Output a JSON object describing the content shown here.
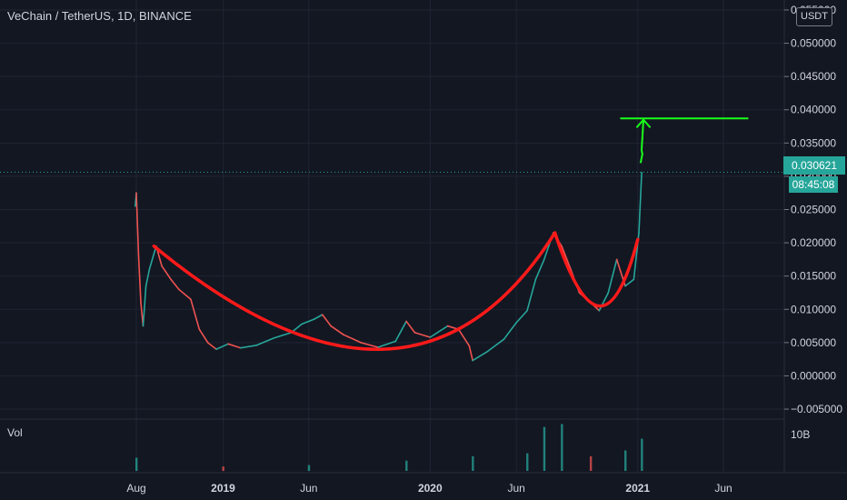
{
  "header": {
    "title": "VeChain / TetherUS, 1D, BINANCE"
  },
  "volume": {
    "label": "Vol",
    "axis_label": "10B"
  },
  "price_axis": {
    "currency": "USDT"
  },
  "last_price": {
    "value": "0.030621",
    "countdown": "08:45:08"
  },
  "colors": {
    "background": "#131722",
    "grid": "#1f2433",
    "up": "#26a69a",
    "down": "#ef5350",
    "cup_curve": "#ff1a1a",
    "target_line": "#1aff1a",
    "last_price_line": "#26a69a"
  },
  "chart_data": {
    "type": "candlestick",
    "title": "VeChain / TetherUS, 1D, BINANCE",
    "x_ticks": [
      "Aug",
      "2019",
      "Jun",
      "2020",
      "Jun",
      "2021",
      "Jun"
    ],
    "y_ticks": [
      "0.055000",
      "0.050000",
      "0.045000",
      "0.040000",
      "0.035000",
      "0.030000",
      "0.025000",
      "0.020000",
      "0.015000",
      "0.010000",
      "0.005000",
      "0.000000",
      "−0.005000"
    ],
    "ylim": [
      -0.0065,
      0.0565
    ],
    "last_price": 0.030621,
    "target_level": 0.0387,
    "price_series": [
      {
        "date": "2018-07-30",
        "close": 0.0255
      },
      {
        "date": "2018-08-01",
        "close": 0.0275
      },
      {
        "date": "2018-08-05",
        "close": 0.018
      },
      {
        "date": "2018-08-09",
        "close": 0.011
      },
      {
        "date": "2018-08-13",
        "close": 0.0075
      },
      {
        "date": "2018-08-18",
        "close": 0.0135
      },
      {
        "date": "2018-08-24",
        "close": 0.016
      },
      {
        "date": "2018-09-05",
        "close": 0.0195
      },
      {
        "date": "2018-09-15",
        "close": 0.0165
      },
      {
        "date": "2018-10-01",
        "close": 0.0145
      },
      {
        "date": "2018-10-15",
        "close": 0.013
      },
      {
        "date": "2018-11-05",
        "close": 0.0115
      },
      {
        "date": "2018-11-20",
        "close": 0.007
      },
      {
        "date": "2018-12-05",
        "close": 0.005
      },
      {
        "date": "2018-12-20",
        "close": 0.004
      },
      {
        "date": "2019-01-10",
        "close": 0.0048
      },
      {
        "date": "2019-02-01",
        "close": 0.0042
      },
      {
        "date": "2019-03-01",
        "close": 0.0046
      },
      {
        "date": "2019-04-01",
        "close": 0.0057
      },
      {
        "date": "2019-05-01",
        "close": 0.0065
      },
      {
        "date": "2019-05-20",
        "close": 0.0078
      },
      {
        "date": "2019-06-10",
        "close": 0.0085
      },
      {
        "date": "2019-06-25",
        "close": 0.0092
      },
      {
        "date": "2019-07-10",
        "close": 0.0075
      },
      {
        "date": "2019-08-01",
        "close": 0.0062
      },
      {
        "date": "2019-09-01",
        "close": 0.005
      },
      {
        "date": "2019-10-01",
        "close": 0.0043
      },
      {
        "date": "2019-11-01",
        "close": 0.0052
      },
      {
        "date": "2019-11-20",
        "close": 0.0082
      },
      {
        "date": "2019-12-05",
        "close": 0.0065
      },
      {
        "date": "2020-01-01",
        "close": 0.0058
      },
      {
        "date": "2020-02-01",
        "close": 0.0075
      },
      {
        "date": "2020-02-20",
        "close": 0.007
      },
      {
        "date": "2020-03-10",
        "close": 0.0045
      },
      {
        "date": "2020-03-16",
        "close": 0.0023
      },
      {
        "date": "2020-04-10",
        "close": 0.0036
      },
      {
        "date": "2020-05-10",
        "close": 0.0055
      },
      {
        "date": "2020-06-01",
        "close": 0.008
      },
      {
        "date": "2020-06-20",
        "close": 0.0098
      },
      {
        "date": "2020-07-05",
        "close": 0.0145
      },
      {
        "date": "2020-07-20",
        "close": 0.0175
      },
      {
        "date": "2020-08-05",
        "close": 0.0215
      },
      {
        "date": "2020-08-20",
        "close": 0.0195
      },
      {
        "date": "2020-09-05",
        "close": 0.016
      },
      {
        "date": "2020-09-20",
        "close": 0.0125
      },
      {
        "date": "2020-10-10",
        "close": 0.011
      },
      {
        "date": "2020-10-25",
        "close": 0.0098
      },
      {
        "date": "2020-11-10",
        "close": 0.0125
      },
      {
        "date": "2020-11-25",
        "close": 0.0175
      },
      {
        "date": "2020-12-10",
        "close": 0.0135
      },
      {
        "date": "2020-12-25",
        "close": 0.0145
      },
      {
        "date": "2021-01-03",
        "close": 0.0215
      },
      {
        "date": "2021-01-08",
        "close": 0.0306
      }
    ],
    "volume_series": [
      {
        "date": "2018-08-01",
        "value": 0.45
      },
      {
        "date": "2019-01-01",
        "value": 0.15
      },
      {
        "date": "2019-06-01",
        "value": 0.2
      },
      {
        "date": "2019-11-20",
        "value": 0.35
      },
      {
        "date": "2020-03-16",
        "value": 0.5
      },
      {
        "date": "2020-06-20",
        "value": 0.6
      },
      {
        "date": "2020-07-20",
        "value": 1.5
      },
      {
        "date": "2020-08-20",
        "value": 1.6
      },
      {
        "date": "2020-10-10",
        "value": 0.5
      },
      {
        "date": "2020-12-10",
        "value": 0.7
      },
      {
        "date": "2021-01-08",
        "value": 1.1
      }
    ],
    "annotations": [
      {
        "name": "cup",
        "type": "curve",
        "color": "#ff1a1a",
        "points": [
          {
            "date": "2018-09-01",
            "price": 0.0195
          },
          {
            "date": "2019-10-10",
            "price": 0.004
          },
          {
            "date": "2020-08-08",
            "price": 0.0215
          }
        ]
      },
      {
        "name": "handle",
        "type": "curve",
        "color": "#ff1a1a",
        "points": [
          {
            "date": "2020-08-08",
            "price": 0.0215
          },
          {
            "date": "2020-10-25",
            "price": 0.0105
          },
          {
            "date": "2021-01-01",
            "price": 0.0205
          }
        ]
      },
      {
        "name": "target",
        "type": "hline",
        "color": "#1aff1a",
        "price": 0.0387,
        "from": "2020-12-01",
        "to": "2021-07-15"
      },
      {
        "name": "breakout-arrow",
        "type": "arrow",
        "color": "#1aff1a",
        "from": {
          "date": "2021-01-06",
          "price": 0.032
        },
        "to": {
          "date": "2021-01-11",
          "price": 0.0385
        }
      }
    ]
  }
}
